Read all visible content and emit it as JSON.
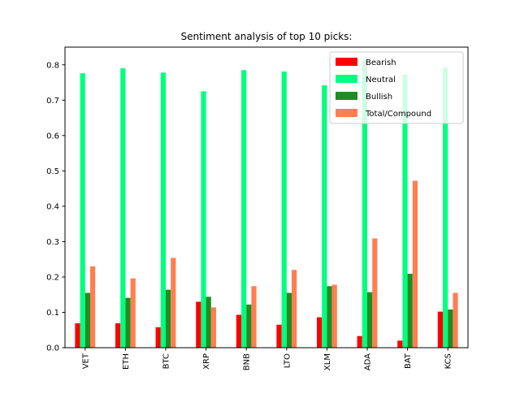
{
  "chart_data": {
    "type": "bar",
    "title": "Sentiment analysis of top 10 picks:",
    "xlabel": "",
    "ylabel": "",
    "categories": [
      "VET",
      "ETH",
      "BTC",
      "XRP",
      "BNB",
      "LTO",
      "XLM",
      "ADA",
      "BAT",
      "KCS"
    ],
    "ylim": [
      0,
      0.85
    ],
    "yticks": [
      0.0,
      0.1,
      0.2,
      0.3,
      0.4,
      0.5,
      0.6,
      0.7,
      0.8
    ],
    "ytick_labels": [
      "0.0",
      "0.1",
      "0.2",
      "0.3",
      "0.4",
      "0.5",
      "0.6",
      "0.7",
      "0.8"
    ],
    "grid": false,
    "legend_position": "top-right",
    "series": [
      {
        "name": "Bearish",
        "color": "#ff0000",
        "values": [
          0.069,
          0.069,
          0.058,
          0.13,
          0.093,
          0.065,
          0.086,
          0.033,
          0.02,
          0.102
        ]
      },
      {
        "name": "Neutral",
        "color": "#00ff7f",
        "values": [
          0.776,
          0.79,
          0.778,
          0.725,
          0.785,
          0.781,
          0.742,
          0.812,
          0.772,
          0.792
        ]
      },
      {
        "name": "Bullish",
        "color": "#228b22",
        "values": [
          0.155,
          0.141,
          0.164,
          0.144,
          0.122,
          0.155,
          0.174,
          0.157,
          0.209,
          0.108
        ]
      },
      {
        "name": "Total/Compound",
        "color": "#ff7f50",
        "values": [
          0.23,
          0.196,
          0.254,
          0.114,
          0.174,
          0.22,
          0.178,
          0.309,
          0.472,
          0.155
        ]
      }
    ]
  }
}
